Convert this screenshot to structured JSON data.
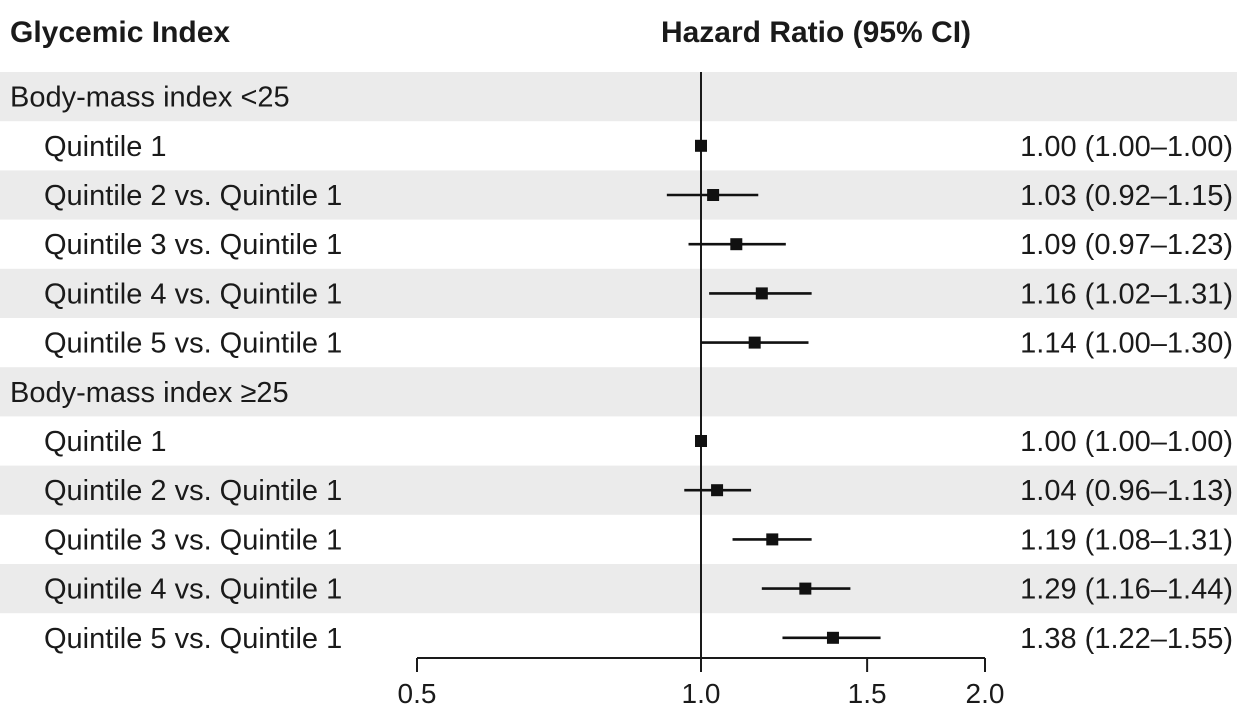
{
  "chart_data": {
    "type": "forest",
    "left_header": "Glycemic Index",
    "center_header": "Hazard Ratio (95% CI)",
    "x_scale": "log",
    "xlim": [
      0.5,
      2.0
    ],
    "x_ticks": [
      {
        "value": 0.5,
        "label": "0.5"
      },
      {
        "value": 1.0,
        "label": "1.0"
      },
      {
        "value": 1.5,
        "label": "1.5"
      },
      {
        "value": 2.0,
        "label": "2.0"
      }
    ],
    "reference_line": 1.0,
    "row_band_color": "#ebebeb",
    "marker_color": "#111111",
    "rows": [
      {
        "kind": "group",
        "label": "Body-mass index <25"
      },
      {
        "kind": "item",
        "label": "Quintile 1",
        "hr": 1.0,
        "lo": 1.0,
        "hi": 1.0,
        "text": "1.00 (1.00–1.00)"
      },
      {
        "kind": "item",
        "label": "Quintile 2 vs. Quintile 1",
        "hr": 1.03,
        "lo": 0.92,
        "hi": 1.15,
        "text": "1.03 (0.92–1.15)"
      },
      {
        "kind": "item",
        "label": "Quintile 3 vs. Quintile 1",
        "hr": 1.09,
        "lo": 0.97,
        "hi": 1.23,
        "text": "1.09 (0.97–1.23)"
      },
      {
        "kind": "item",
        "label": "Quintile 4 vs. Quintile 1",
        "hr": 1.16,
        "lo": 1.02,
        "hi": 1.31,
        "text": "1.16 (1.02–1.31)"
      },
      {
        "kind": "item",
        "label": "Quintile 5 vs. Quintile 1",
        "hr": 1.14,
        "lo": 1.0,
        "hi": 1.3,
        "text": "1.14 (1.00–1.30)"
      },
      {
        "kind": "group",
        "label": "Body-mass index ≥25"
      },
      {
        "kind": "item",
        "label": "Quintile 1",
        "hr": 1.0,
        "lo": 1.0,
        "hi": 1.0,
        "text": "1.00 (1.00–1.00)"
      },
      {
        "kind": "item",
        "label": "Quintile 2 vs. Quintile 1",
        "hr": 1.04,
        "lo": 0.96,
        "hi": 1.13,
        "text": "1.04 (0.96–1.13)"
      },
      {
        "kind": "item",
        "label": "Quintile 3 vs. Quintile 1",
        "hr": 1.19,
        "lo": 1.08,
        "hi": 1.31,
        "text": "1.19 (1.08–1.31)"
      },
      {
        "kind": "item",
        "label": "Quintile 4 vs. Quintile 1",
        "hr": 1.29,
        "lo": 1.16,
        "hi": 1.44,
        "text": "1.29 (1.16–1.44)"
      },
      {
        "kind": "item",
        "label": "Quintile 5 vs. Quintile 1",
        "hr": 1.38,
        "lo": 1.22,
        "hi": 1.55,
        "text": "1.38 (1.22–1.55)"
      }
    ]
  }
}
